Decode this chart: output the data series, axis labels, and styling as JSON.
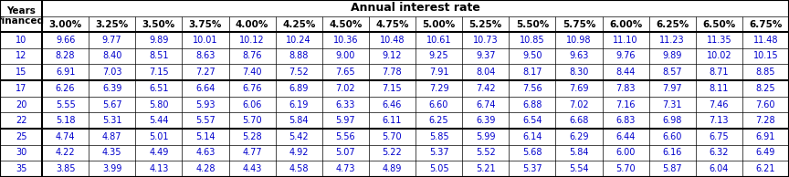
{
  "title": "Annual interest rate",
  "row_header_line1": "Years",
  "row_header_line2": "financed",
  "col_headers": [
    "3.00%",
    "3.25%",
    "3.50%",
    "3.75%",
    "4.00%",
    "4.25%",
    "4.50%",
    "4.75%",
    "5.00%",
    "5.25%",
    "5.50%",
    "5.75%",
    "6.00%",
    "6.25%",
    "6.50%",
    "6.75%"
  ],
  "rows": [
    {
      "year": "10",
      "values": [
        "9.66",
        "9.77",
        "9.89",
        "10.01",
        "10.12",
        "10.24",
        "10.36",
        "10.48",
        "10.61",
        "10.73",
        "10.85",
        "10.98",
        "11.10",
        "11.23",
        "11.35",
        "11.48"
      ]
    },
    {
      "year": "12",
      "values": [
        "8.28",
        "8.40",
        "8.51",
        "8.63",
        "8.76",
        "8.88",
        "9.00",
        "9.12",
        "9.25",
        "9.37",
        "9.50",
        "9.63",
        "9.76",
        "9.89",
        "10.02",
        "10.15"
      ]
    },
    {
      "year": "15",
      "values": [
        "6.91",
        "7.03",
        "7.15",
        "7.27",
        "7.40",
        "7.52",
        "7.65",
        "7.78",
        "7.91",
        "8.04",
        "8.17",
        "8.30",
        "8.44",
        "8.57",
        "8.71",
        "8.85"
      ]
    },
    {
      "year": "17",
      "values": [
        "6.26",
        "6.39",
        "6.51",
        "6.64",
        "6.76",
        "6.89",
        "7.02",
        "7.15",
        "7.29",
        "7.42",
        "7.56",
        "7.69",
        "7.83",
        "7.97",
        "8.11",
        "8.25"
      ]
    },
    {
      "year": "20",
      "values": [
        "5.55",
        "5.67",
        "5.80",
        "5.93",
        "6.06",
        "6.19",
        "6.33",
        "6.46",
        "6.60",
        "6.74",
        "6.88",
        "7.02",
        "7.16",
        "7.31",
        "7.46",
        "7.60"
      ]
    },
    {
      "year": "22",
      "values": [
        "5.18",
        "5.31",
        "5.44",
        "5.57",
        "5.70",
        "5.84",
        "5.97",
        "6.11",
        "6.25",
        "6.39",
        "6.54",
        "6.68",
        "6.83",
        "6.98",
        "7.13",
        "7.28"
      ]
    },
    {
      "year": "25",
      "values": [
        "4.74",
        "4.87",
        "5.01",
        "5.14",
        "5.28",
        "5.42",
        "5.56",
        "5.70",
        "5.85",
        "5.99",
        "6.14",
        "6.29",
        "6.44",
        "6.60",
        "6.75",
        "6.91"
      ]
    },
    {
      "year": "30",
      "values": [
        "4.22",
        "4.35",
        "4.49",
        "4.63",
        "4.77",
        "4.92",
        "5.07",
        "5.22",
        "5.37",
        "5.52",
        "5.68",
        "5.84",
        "6.00",
        "6.16",
        "6.32",
        "6.49"
      ]
    },
    {
      "year": "35",
      "values": [
        "3.85",
        "3.99",
        "4.13",
        "4.28",
        "4.43",
        "4.58",
        "4.73",
        "4.89",
        "5.05",
        "5.21",
        "5.37",
        "5.54",
        "5.70",
        "5.87",
        "6.04",
        "6.21"
      ]
    }
  ],
  "group_separators_after_rows": [
    2,
    5
  ],
  "header_text_color": "#000000",
  "data_text_color": "#0000cc",
  "border_color": "#000000",
  "bg_color": "#ffffff",
  "thin_lw": 0.5,
  "thick_lw": 1.5,
  "data_fontsize": 7.0,
  "header_fontsize": 7.5,
  "title_fontsize": 9.0
}
